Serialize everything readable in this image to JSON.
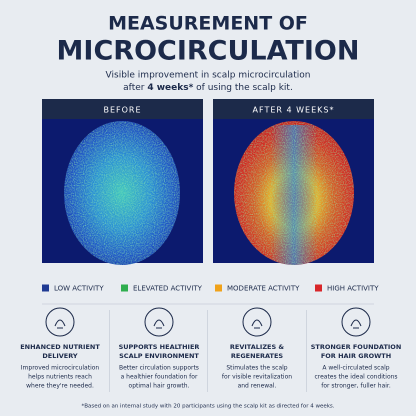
{
  "header": {
    "title_lines": [
      "MEASUREMENT OF",
      "MICROCIRCULATION"
    ],
    "subtitle_line1": "Visible improvement in scalp microcirculation",
    "subtitle_line2": {
      "before": "after ",
      "bold": "4 weeks*",
      "after": " of using the scalp kit."
    }
  },
  "panels": [
    {
      "label": "BEFORE"
    },
    {
      "label": "AFTER 4 WEEKS*"
    }
  ],
  "legend": [
    {
      "label": "LOW ACTIVITY",
      "color": "#1f3a93"
    },
    {
      "label": "ELEVATED ACTIVITY",
      "color": "#2fae4f"
    },
    {
      "label": "MODERATE ACTIVITY",
      "color": "#f0a21a"
    },
    {
      "label": "HIGH ACTIVITY",
      "color": "#d8262a"
    }
  ],
  "features": [
    {
      "title": [
        "ENHANCED NUTRIENT",
        "DELIVERY"
      ],
      "text": [
        "Improved microcirculation",
        "helps nutrients reach",
        "where they're needed."
      ]
    },
    {
      "title": [
        "SUPPORTS HEALTHIER",
        "SCALP ENVIRONMENT"
      ],
      "text": [
        "Better circulation supports",
        "a healthier foundation for",
        "optimal hair growth."
      ]
    },
    {
      "title": [
        "REVITALIZES &",
        "REGENERATES"
      ],
      "text": [
        "Stimulates the scalp",
        "for visible revitalization",
        "and renewal."
      ]
    },
    {
      "title": [
        "STRONGER FOUNDATION",
        "FOR HAIR GROWTH"
      ],
      "text": [
        "A well-circulated scalp",
        "creates the ideal conditions",
        "for stronger, fuller hair."
      ]
    }
  ],
  "footnote": "*Based on an internal study with 20 participants using the scalp kit as directed for 4 weeks."
}
